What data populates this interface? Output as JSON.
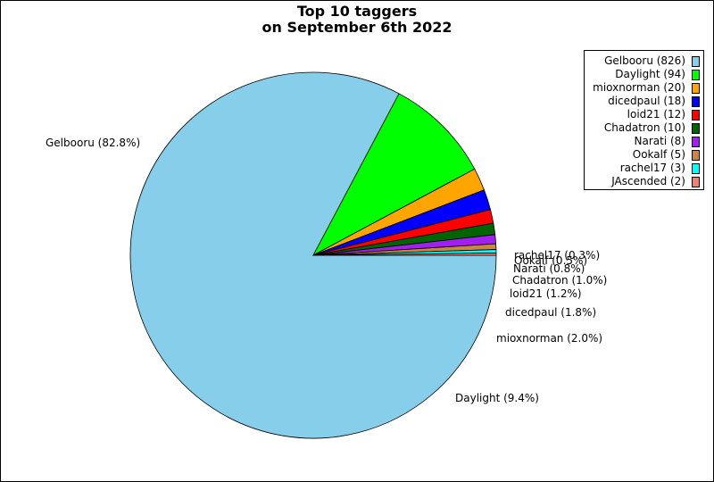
{
  "title": {
    "line1": "Top 10 taggers",
    "line2": "on September 6th 2022"
  },
  "chart_data": {
    "type": "pie",
    "title": "Top 10 taggers on September 6th 2022",
    "legend_position": "top-right",
    "slices": [
      {
        "name": "Gelbooru",
        "value": 826,
        "percent_label": "82.8%",
        "color": "#87ceeb",
        "legend": "Gelbooru (826)",
        "label": "Gelbooru (82.8%)"
      },
      {
        "name": "Daylight",
        "value": 94,
        "percent_label": "9.4%",
        "color": "#00ff00",
        "legend": "Daylight (94)",
        "label": "Daylight (9.4%)"
      },
      {
        "name": "mioxnorman",
        "value": 20,
        "percent_label": "2.0%",
        "color": "#ffa500",
        "legend": "mioxnorman (20)",
        "label": "mioxnorman (2.0%)"
      },
      {
        "name": "dicedpaul",
        "value": 18,
        "percent_label": "1.8%",
        "color": "#0000ff",
        "legend": "dicedpaul (18)",
        "label": "dicedpaul (1.8%)"
      },
      {
        "name": "loid21",
        "value": 12,
        "percent_label": "1.2%",
        "color": "#ff0000",
        "legend": "loid21 (12)",
        "label": "loid21 (1.2%)"
      },
      {
        "name": "Chadatron",
        "value": 10,
        "percent_label": "1.0%",
        "color": "#006400",
        "legend": "Chadatron (10)",
        "label": "Chadatron (1.0%)"
      },
      {
        "name": "Narati",
        "value": 8,
        "percent_label": "0.8%",
        "color": "#a020f0",
        "legend": "Narati (8)",
        "label": "Narati (0.8%)"
      },
      {
        "name": "Ookalf",
        "value": 5,
        "percent_label": "0.5%",
        "color": "#cd853f",
        "legend": "Ookalf (5)",
        "label": "Ookalf (0.5%)"
      },
      {
        "name": "rachel17",
        "value": 3,
        "percent_label": "0.3%",
        "color": "#00ffff",
        "legend": "rachel17 (3)",
        "label": "rachel17 (0.3%)"
      },
      {
        "name": "JAscended",
        "value": 2,
        "percent_label": "0.2%",
        "color": "#f08070",
        "legend": "JAscended (2)",
        "label": ""
      }
    ]
  }
}
